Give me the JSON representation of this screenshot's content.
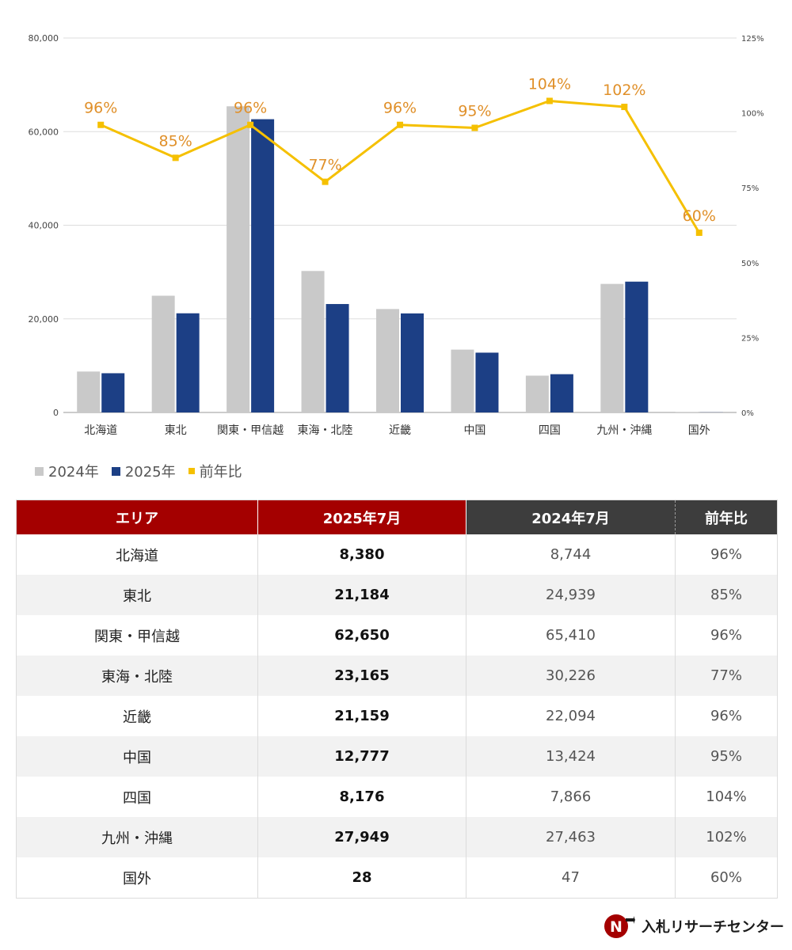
{
  "chart_data": {
    "type": "bar",
    "categories": [
      "北海道",
      "東北",
      "関東・甲信越",
      "東海・北陸",
      "近畿",
      "中国",
      "四国",
      "九州・沖縄",
      "国外"
    ],
    "series": [
      {
        "name": "2024年",
        "type": "bar",
        "color": "#c9c9c9",
        "values": [
          8744,
          24939,
          65410,
          30226,
          22094,
          13424,
          7866,
          27463,
          47
        ]
      },
      {
        "name": "2025年",
        "type": "bar",
        "color": "#1c3f85",
        "values": [
          8380,
          21184,
          62650,
          23165,
          21159,
          12777,
          8176,
          27949,
          28
        ]
      },
      {
        "name": "前年比",
        "type": "line",
        "axis": "right",
        "color": "#f5c000",
        "values": [
          96,
          85,
          96,
          77,
          96,
          95,
          104,
          102,
          60
        ],
        "labels": [
          "96%",
          "85%",
          "96%",
          "77%",
          "96%",
          "95%",
          "104%",
          "102%",
          "60%"
        ]
      }
    ],
    "ylim": [
      0,
      80000
    ],
    "y_ticks": [
      "0",
      "20,000",
      "40,000",
      "60,000",
      "80,000"
    ],
    "y2lim": [
      0,
      125
    ],
    "y2_ticks": [
      "0%",
      "25%",
      "50%",
      "75%",
      "100%",
      "125%"
    ],
    "grid": true,
    "legend_position": "bottom-left",
    "label_color": "#e0902a"
  },
  "legend": {
    "items": [
      "2024年",
      "2025年",
      "前年比"
    ]
  },
  "table": {
    "headers": [
      "エリア",
      "2025年7月",
      "2024年7月",
      "前年比"
    ],
    "rows": [
      [
        "北海道",
        "8,380",
        "8,744",
        "96%"
      ],
      [
        "東北",
        "21,184",
        "24,939",
        "85%"
      ],
      [
        "関東・甲信越",
        "62,650",
        "65,410",
        "96%"
      ],
      [
        "東海・北陸",
        "23,165",
        "30,226",
        "77%"
      ],
      [
        "近畿",
        "21,159",
        "22,094",
        "96%"
      ],
      [
        "中国",
        "12,777",
        "13,424",
        "95%"
      ],
      [
        "四国",
        "8,176",
        "7,866",
        "104%"
      ],
      [
        "九州・沖縄",
        "27,949",
        "27,463",
        "102%"
      ],
      [
        "国外",
        "28",
        "47",
        "60%"
      ]
    ]
  },
  "logo": {
    "text": "入札リサーチセンター",
    "colors": {
      "badge": "#a40000",
      "arrow": "#1a1a1a"
    }
  }
}
